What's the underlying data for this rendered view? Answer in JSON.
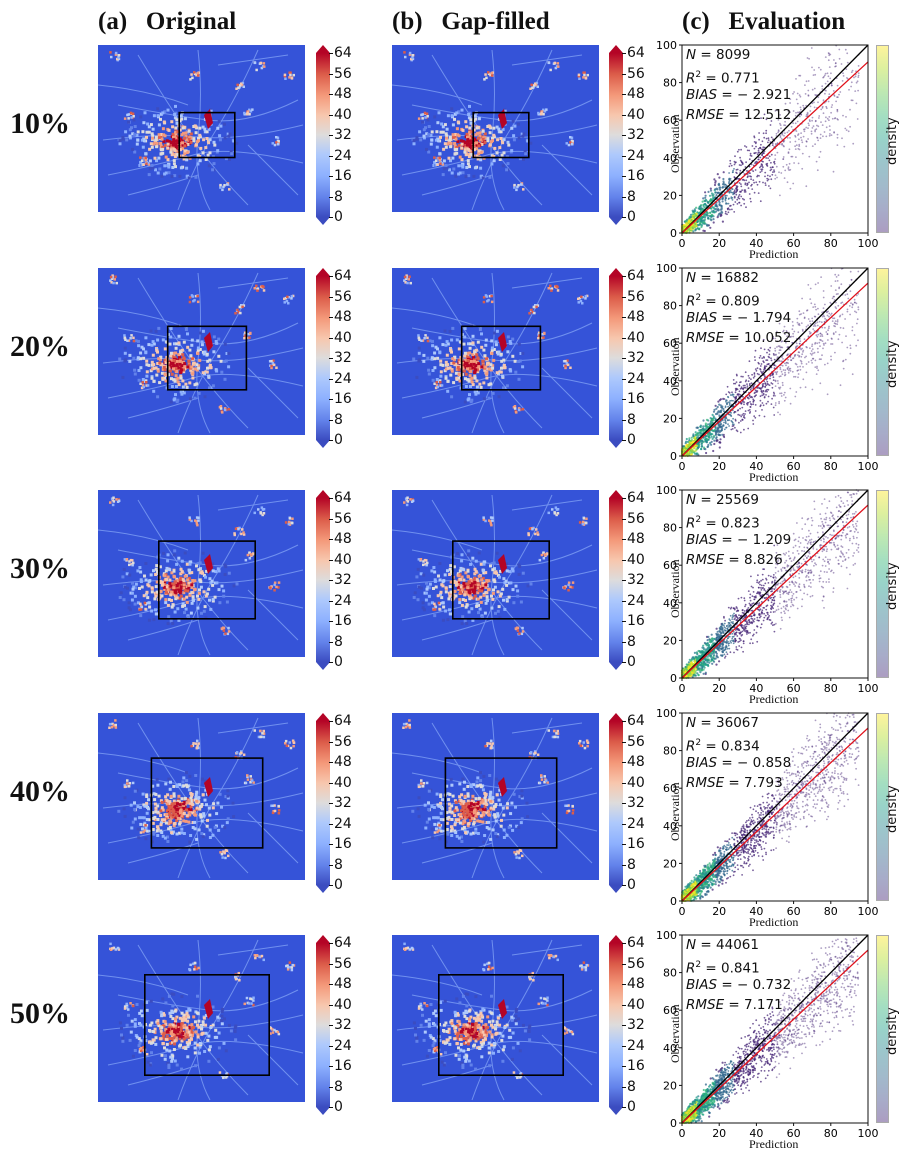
{
  "headers": {
    "a": {
      "tag": "(a)",
      "title": "Original"
    },
    "b": {
      "tag": "(b)",
      "title": "Gap-filled"
    },
    "c": {
      "tag": "(c)",
      "title": "Evaluation"
    }
  },
  "colorbar_ticks": [
    "64",
    "56",
    "48",
    "40",
    "32",
    "24",
    "16",
    "8",
    "0"
  ],
  "colors": {
    "map_background": "#3553d8",
    "obs_line": "#000000",
    "fit_line": "#e0101a"
  },
  "density_label": "density",
  "chart_data": [
    {
      "type": "scatter",
      "row_label": "10%",
      "gap_fraction": 0.1,
      "xlabel": "Prediction",
      "ylabel": "Observation",
      "xlim": [
        0,
        100
      ],
      "ylim": [
        0,
        100
      ],
      "xticks": [
        "0",
        "20",
        "40",
        "60",
        "80",
        "100"
      ],
      "yticks": [
        "0",
        "20",
        "40",
        "60",
        "80",
        "100"
      ],
      "stats": {
        "N": "8099",
        "R2": "0.771",
        "BIAS": "− 2.921",
        "RMSE": "12.512"
      },
      "fit": {
        "slope": 0.91,
        "intercept": 0.0
      },
      "spread": 0.38
    },
    {
      "type": "scatter",
      "row_label": "20%",
      "gap_fraction": 0.2,
      "xlabel": "Prediction",
      "ylabel": "Observation",
      "xlim": [
        0,
        100
      ],
      "ylim": [
        0,
        100
      ],
      "xticks": [
        "0",
        "20",
        "40",
        "60",
        "80",
        "100"
      ],
      "yticks": [
        "0",
        "20",
        "40",
        "60",
        "80",
        "100"
      ],
      "stats": {
        "N": "16882",
        "R2": "0.809",
        "BIAS": "− 1.794",
        "RMSE": "10.052"
      },
      "fit": {
        "slope": 0.92,
        "intercept": 0.0
      },
      "spread": 0.33
    },
    {
      "type": "scatter",
      "row_label": "30%",
      "gap_fraction": 0.3,
      "xlabel": "Prediction",
      "ylabel": "Observation",
      "xlim": [
        0,
        100
      ],
      "ylim": [
        0,
        100
      ],
      "xticks": [
        "0",
        "20",
        "40",
        "60",
        "80",
        "100"
      ],
      "yticks": [
        "0",
        "20",
        "40",
        "60",
        "80",
        "100"
      ],
      "stats": {
        "N": "25569",
        "R2": "0.823",
        "BIAS": "− 1.209",
        "RMSE": "8.826"
      },
      "fit": {
        "slope": 0.92,
        "intercept": 0.0
      },
      "spread": 0.3
    },
    {
      "type": "scatter",
      "row_label": "40%",
      "gap_fraction": 0.4,
      "xlabel": "Prediction",
      "ylabel": "Observation",
      "xlim": [
        0,
        100
      ],
      "ylim": [
        0,
        100
      ],
      "xticks": [
        "0",
        "20",
        "40",
        "60",
        "80",
        "100"
      ],
      "yticks": [
        "0",
        "20",
        "40",
        "60",
        "80",
        "100"
      ],
      "stats": {
        "N": "36067",
        "R2": "0.834",
        "BIAS": "− 0.858",
        "RMSE": "7.793"
      },
      "fit": {
        "slope": 0.92,
        "intercept": 0.0
      },
      "spread": 0.28
    },
    {
      "type": "scatter",
      "row_label": "50%",
      "gap_fraction": 0.5,
      "xlabel": "Prediction",
      "ylabel": "Observation",
      "xlim": [
        0,
        100
      ],
      "ylim": [
        0,
        100
      ],
      "xticks": [
        "0",
        "20",
        "40",
        "60",
        "80",
        "100"
      ],
      "yticks": [
        "0",
        "20",
        "40",
        "60",
        "80",
        "100"
      ],
      "stats": {
        "N": "44061",
        "R2": "0.841",
        "BIAS": "− 0.732",
        "RMSE": "7.171"
      },
      "fit": {
        "slope": 0.92,
        "intercept": 0.0
      },
      "spread": 0.27
    }
  ]
}
